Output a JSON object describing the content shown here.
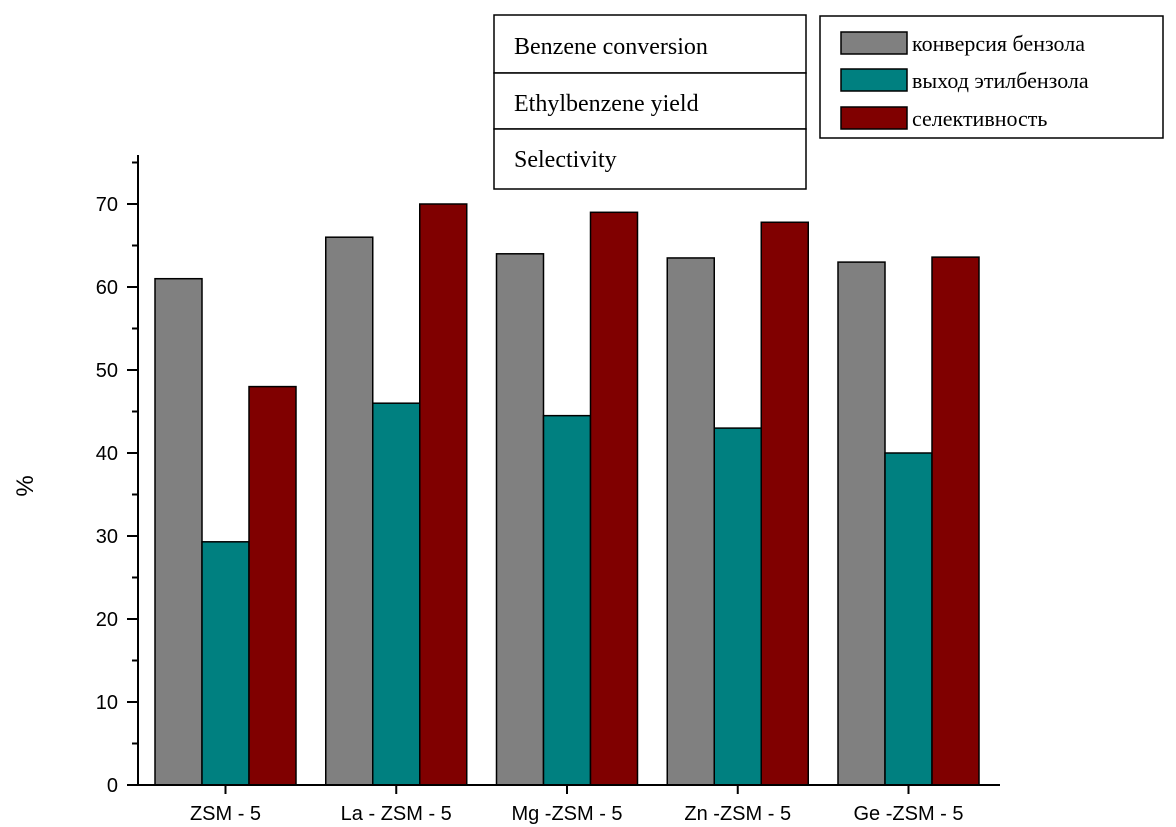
{
  "chart_data": {
    "type": "bar",
    "categories": [
      "ZSM - 5",
      "La - ZSM - 5",
      "Mg -ZSM - 5",
      "Zn -ZSM - 5",
      "Ge -ZSM - 5"
    ],
    "series": [
      {
        "name": "конверсия бензола",
        "color": "#808080",
        "values": [
          61,
          66,
          64,
          63.5,
          63
        ]
      },
      {
        "name": "выход этилбензола",
        "color": "#008080",
        "values": [
          29.3,
          46,
          44.5,
          43,
          40
        ]
      },
      {
        "name": "селективность",
        "color": "#800000",
        "values": [
          48,
          70,
          69,
          67.8,
          63.6
        ]
      }
    ],
    "ylabel": "%",
    "xlabel": "",
    "ylim": [
      0,
      75
    ],
    "yticks": [
      0,
      10,
      20,
      30,
      40,
      50,
      60,
      70
    ],
    "legend": {
      "placement": "top-right"
    },
    "english_labels": [
      "Benzene conversion",
      "Ethylbenzene yield",
      "Selectivity"
    ],
    "grid": false
  }
}
